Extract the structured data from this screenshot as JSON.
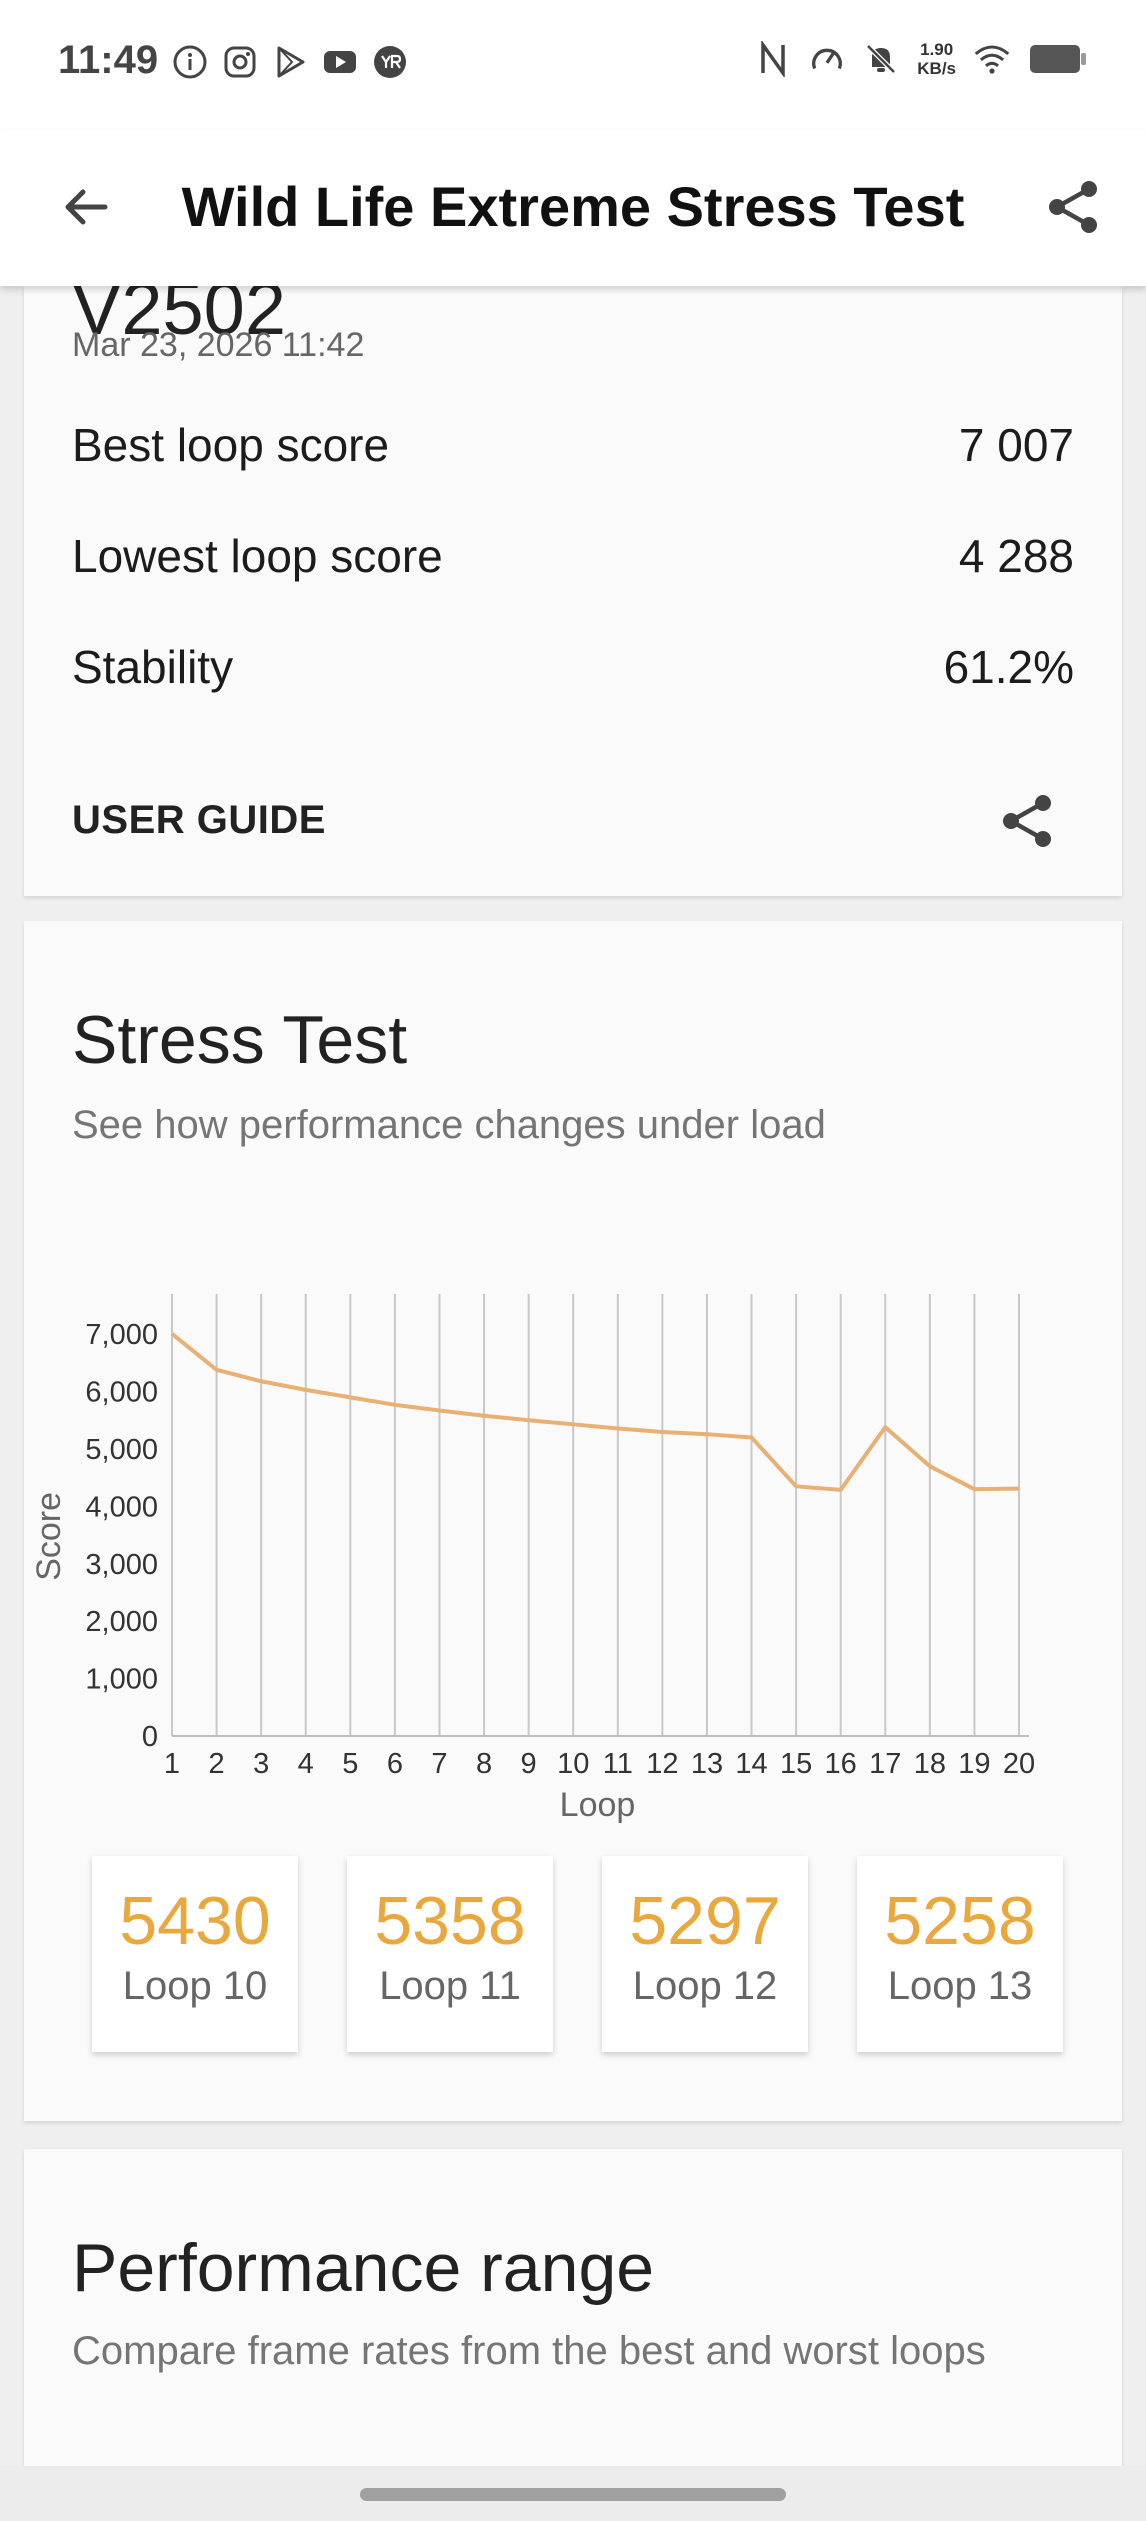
{
  "status_bar": {
    "time": "11:49",
    "net_speed_value": "1.90",
    "net_speed_unit": "KB/s",
    "left_icons": [
      "info-icon",
      "instagram-icon",
      "play-store-icon",
      "youtube-icon",
      "yr-icon"
    ],
    "right_icons": [
      "nfc-icon",
      "speedometer-icon",
      "mute-bell-icon",
      "wifi-icon",
      "battery-icon"
    ]
  },
  "app_bar": {
    "title": "Wild Life Extreme Stress Test"
  },
  "summary": {
    "device_name_partial": "V2502",
    "date": "Mar 23, 2026 11:42",
    "best_loop_label": "Best loop score",
    "best_loop_value": "7 007",
    "lowest_loop_label": "Lowest loop score",
    "lowest_loop_value": "4 288",
    "stability_label": "Stability",
    "stability_value": "61.2%",
    "user_guide_label": "USER GUIDE"
  },
  "stress_test": {
    "title": "Stress Test",
    "subtitle": "See how performance changes under load",
    "loop_cards": [
      {
        "score": "5430",
        "label": "Loop 10"
      },
      {
        "score": "5358",
        "label": "Loop 11"
      },
      {
        "score": "5297",
        "label": "Loop 12"
      },
      {
        "score": "5258",
        "label": "Loop 13"
      }
    ]
  },
  "chart_data": {
    "type": "line",
    "xlabel": "Loop",
    "ylabel": "Score",
    "x": [
      1,
      2,
      3,
      4,
      5,
      6,
      7,
      8,
      9,
      10,
      11,
      12,
      13,
      14,
      15,
      16,
      17,
      18,
      19,
      20
    ],
    "y_ticks": [
      "0",
      "1,000",
      "2,000",
      "3,000",
      "4,000",
      "5,000",
      "6,000",
      "7,000"
    ],
    "ylim": [
      0,
      7700
    ],
    "grid": "vertical",
    "series": [
      {
        "values": [
          7007,
          6380,
          6180,
          6030,
          5900,
          5770,
          5670,
          5580,
          5500,
          5430,
          5358,
          5297,
          5258,
          5200,
          4350,
          4288,
          5380,
          4700,
          4300,
          4310
        ],
        "color": "#e8b073"
      }
    ]
  },
  "performance_range": {
    "title": "Performance range",
    "subtitle": "Compare frame rates from the best and worst loops"
  }
}
